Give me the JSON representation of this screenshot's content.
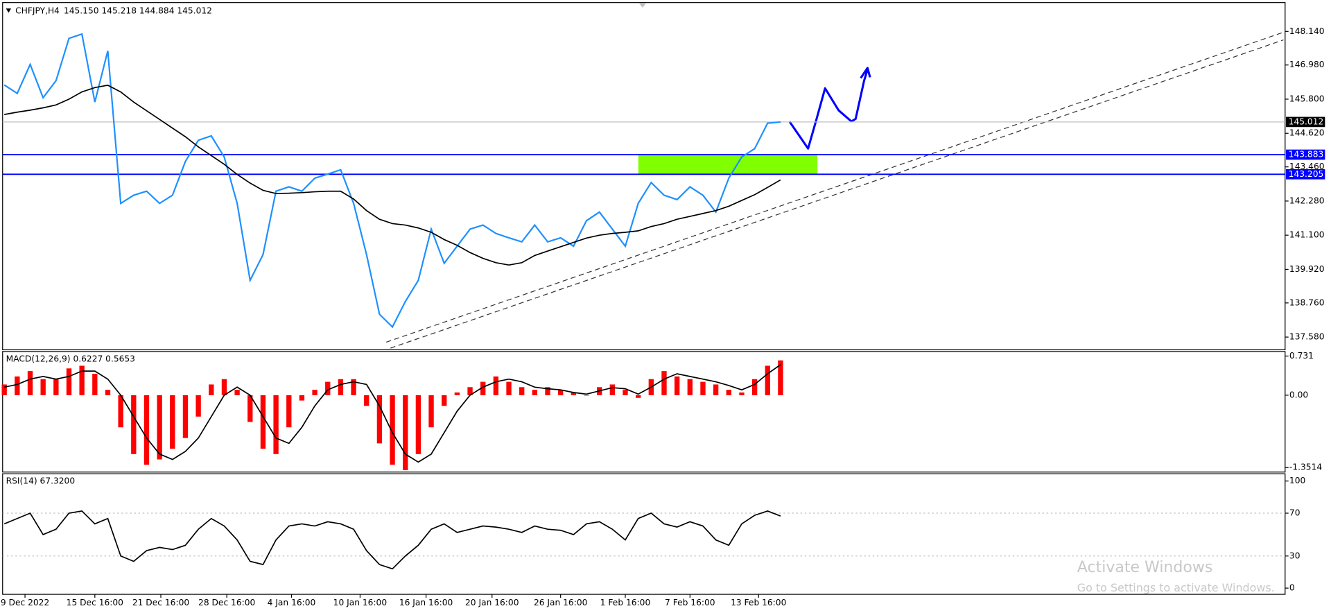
{
  "chart_data": [
    {
      "type": "line",
      "title": "CHFJPY,H4",
      "subtitle": "145.150 145.218 144.884 145.012",
      "xlim": [
        -0.13,
        99.0
      ],
      "xticks": [
        {
          "value": 1.6,
          "label": "9 Dec 2022"
        },
        {
          "value": 7,
          "label": "15 Dec 16:00"
        },
        {
          "value": 12.1,
          "label": "21 Dec 16:00"
        },
        {
          "value": 17.2,
          "label": "28 Dec 16:00"
        },
        {
          "value": 22.2,
          "label": "4 Jan 16:00"
        },
        {
          "value": 27.5,
          "label": "10 Jan 16:00"
        },
        {
          "value": 32.6,
          "label": "16 Jan 16:00"
        },
        {
          "value": 37.7,
          "label": "20 Jan 16:00"
        },
        {
          "value": 43,
          "label": "26 Jan 16:00"
        },
        {
          "value": 48,
          "label": "1 Feb 16:00"
        },
        {
          "value": 53,
          "label": "7 Feb 16:00"
        },
        {
          "value": 58.3,
          "label": "13 Feb 16:00"
        }
      ],
      "ylim": [
        137.199,
        149.079
      ],
      "yticks": [
        {
          "value": 148.14,
          "label": "148.140"
        },
        {
          "value": 146.98,
          "label": "146.980"
        },
        {
          "value": 145.8,
          "label": "145.800"
        },
        {
          "value": 144.62,
          "label": "144.620"
        },
        {
          "value": 143.46,
          "label": "143.460"
        },
        {
          "value": 142.28,
          "label": "142.280"
        },
        {
          "value": 141.1,
          "label": "141.100"
        },
        {
          "value": 139.92,
          "label": "139.920"
        },
        {
          "value": 138.76,
          "label": "138.760"
        },
        {
          "value": 137.58,
          "label": "137.580"
        }
      ],
      "series": [
        {
          "color": "#1e90ff",
          "values": [
            146.29,
            146.0,
            147.0,
            145.85,
            146.44,
            147.9,
            148.05,
            145.7,
            147.47,
            142.2,
            142.48,
            142.62,
            142.2,
            142.48,
            143.65,
            144.38,
            144.53,
            143.8,
            142.2,
            139.54,
            140.43,
            142.62,
            142.77,
            142.62,
            143.07,
            143.21,
            143.36,
            142.2,
            140.43,
            138.37,
            137.93,
            138.81,
            139.54,
            141.31,
            140.13,
            140.72,
            141.31,
            141.45,
            141.16,
            141.01,
            140.87,
            141.45,
            140.87,
            141.01,
            140.72,
            141.6,
            141.9,
            141.31,
            140.72,
            142.2,
            142.92,
            142.48,
            142.33,
            142.77,
            142.48,
            141.9,
            143.07,
            143.8,
            144.09,
            144.97,
            145.01
          ]
        },
        {
          "color": "#000000",
          "values": [
            145.27,
            145.35,
            145.42,
            145.5,
            145.6,
            145.8,
            146.05,
            146.2,
            146.28,
            146.05,
            145.7,
            145.4,
            145.1,
            144.8,
            144.5,
            144.15,
            143.85,
            143.55,
            143.2,
            142.9,
            142.65,
            142.54,
            142.55,
            142.57,
            142.6,
            142.62,
            142.62,
            142.35,
            141.95,
            141.65,
            141.5,
            141.45,
            141.35,
            141.2,
            140.95,
            140.75,
            140.5,
            140.3,
            140.15,
            140.07,
            140.15,
            140.4,
            140.55,
            140.7,
            140.85,
            141.0,
            141.1,
            141.16,
            141.2,
            141.25,
            141.4,
            141.5,
            141.65,
            141.75,
            141.85,
            141.95,
            142.1,
            142.3,
            142.5,
            142.75,
            143.01
          ]
        }
      ],
      "levels": [
        {
          "value": 143.883,
          "color": "#0000ff"
        },
        {
          "value": 143.205,
          "color": "#0000ff"
        }
      ],
      "last_price": {
        "value": 145.012,
        "color": "#000000"
      }
    },
    {
      "type": "bar",
      "title": "MACD(12,26,9) 0.6227 0.5653",
      "ylim": [
        -1.42,
        0.8
      ],
      "yticks": [
        0.731,
        {
          "value": 0,
          "label": "0.00"
        },
        -1.3514
      ],
      "series": [
        {
          "kind": "bar",
          "color": "#ff0000",
          "values": [
            0.2,
            0.35,
            0.45,
            0.3,
            0.3,
            0.5,
            0.55,
            0.4,
            0.1,
            -0.6,
            -1.1,
            -1.3,
            -1.2,
            -1.0,
            -0.8,
            -0.4,
            0.2,
            0.3,
            0.1,
            -0.5,
            -1.0,
            -1.1,
            -0.6,
            -0.1,
            0.1,
            0.25,
            0.3,
            0.3,
            -0.2,
            -0.9,
            -1.3,
            -1.4,
            -1.1,
            -0.6,
            -0.2,
            0.05,
            0.15,
            0.25,
            0.35,
            0.25,
            0.15,
            0.1,
            0.15,
            0.1,
            0.05,
            0.0,
            0.15,
            0.2,
            0.1,
            -0.05,
            0.3,
            0.45,
            0.35,
            0.3,
            0.25,
            0.2,
            0.1,
            0.05,
            0.3,
            0.55,
            0.65
          ]
        },
        {
          "kind": "line",
          "color": "#000000",
          "values": [
            0.15,
            0.2,
            0.3,
            0.35,
            0.3,
            0.35,
            0.45,
            0.45,
            0.3,
            0.0,
            -0.4,
            -0.8,
            -1.1,
            -1.2,
            -1.05,
            -0.8,
            -0.4,
            0.0,
            0.15,
            0.0,
            -0.4,
            -0.8,
            -0.9,
            -0.6,
            -0.2,
            0.1,
            0.2,
            0.25,
            0.2,
            -0.2,
            -0.7,
            -1.1,
            -1.25,
            -1.1,
            -0.7,
            -0.3,
            0.0,
            0.15,
            0.25,
            0.3,
            0.25,
            0.15,
            0.12,
            0.1,
            0.05,
            0.02,
            0.08,
            0.14,
            0.12,
            0.02,
            0.15,
            0.3,
            0.4,
            0.35,
            0.3,
            0.25,
            0.18,
            0.1,
            0.2,
            0.4,
            0.57
          ]
        }
      ]
    },
    {
      "type": "line",
      "title": "RSI(14) 67.3200",
      "ylim": [
        -5,
        106
      ],
      "yticks": [
        0,
        30,
        70,
        100
      ],
      "levels": [
        {
          "value": 30,
          "color": "#c0c0c0"
        },
        {
          "value": 70,
          "color": "#c0c0c0"
        }
      ],
      "series": [
        {
          "color": "#000000",
          "values": [
            60,
            65,
            70,
            50,
            55,
            70,
            72,
            60,
            65,
            30,
            25,
            35,
            38,
            36,
            40,
            55,
            65,
            58,
            45,
            25,
            22,
            45,
            58,
            60,
            58,
            62,
            60,
            55,
            35,
            22,
            18,
            30,
            40,
            55,
            60,
            52,
            55,
            58,
            57,
            55,
            52,
            58,
            55,
            54,
            50,
            60,
            62,
            55,
            45,
            65,
            70,
            60,
            57,
            62,
            58,
            45,
            40,
            60,
            68,
            72,
            67.32
          ]
        }
      ]
    }
  ],
  "watermark": {
    "line1": "Activate Windows",
    "line2": "Go to Settings to activate Windows."
  }
}
